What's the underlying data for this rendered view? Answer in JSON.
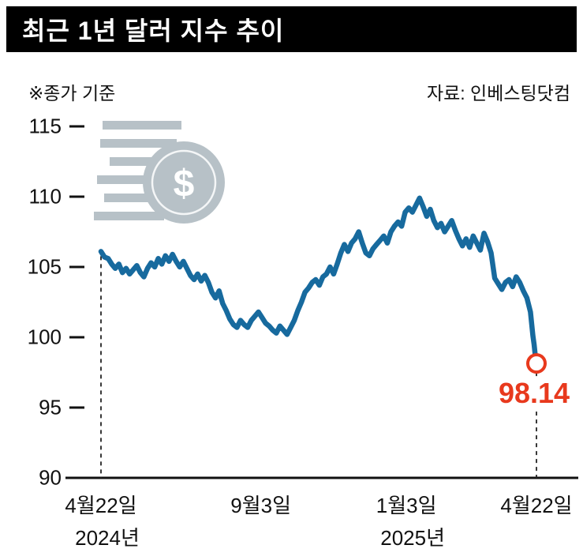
{
  "header": {
    "title": "최근 1년 달러 지수 추이"
  },
  "meta": {
    "note": "※종가 기준",
    "source": "자료: 인베스팅닷컴"
  },
  "colors": {
    "line": "#176a9e",
    "accent_red": "#e8391d",
    "icon_gray": "#b7c1c7",
    "axis": "#111111",
    "banner_bg": "#000000",
    "banner_text": "#ffffff"
  },
  "chart_data": {
    "type": "line",
    "title": "최근 1년 달러 지수 추이",
    "note": "※종가 기준",
    "source": "자료: 인베스팅닷컴",
    "ylim": [
      90,
      115
    ],
    "yticks": [
      115,
      110,
      105,
      100,
      95,
      90
    ],
    "grid": false,
    "legend": "none",
    "line_width": 6.5,
    "x_axis": {
      "unit": "days_since_start",
      "max_day": 365,
      "labels": [
        {
          "day": 0,
          "label": "4월22일",
          "sub": "2024년"
        },
        {
          "day": 134,
          "label": "9월3일"
        },
        {
          "day": 256,
          "label": "1월3일",
          "sub": "2025년"
        },
        {
          "day": 365,
          "label": "4월22일"
        }
      ]
    },
    "series": [
      {
        "name": "달러 지수",
        "color": "#176a9e",
        "points": [
          [
            0,
            106.1
          ],
          [
            3,
            105.7
          ],
          [
            6,
            105.6
          ],
          [
            9,
            105.2
          ],
          [
            12,
            104.9
          ],
          [
            15,
            105.2
          ],
          [
            18,
            104.6
          ],
          [
            21,
            104.9
          ],
          [
            24,
            104.5
          ],
          [
            27,
            104.8
          ],
          [
            30,
            105.1
          ],
          [
            33,
            104.6
          ],
          [
            36,
            104.3
          ],
          [
            39,
            104.9
          ],
          [
            42,
            105.3
          ],
          [
            45,
            105.0
          ],
          [
            48,
            105.6
          ],
          [
            51,
            105.2
          ],
          [
            54,
            105.8
          ],
          [
            57,
            105.4
          ],
          [
            60,
            105.9
          ],
          [
            63,
            105.4
          ],
          [
            66,
            105.0
          ],
          [
            69,
            105.4
          ],
          [
            72,
            104.9
          ],
          [
            75,
            104.4
          ],
          [
            78,
            104.1
          ],
          [
            81,
            104.5
          ],
          [
            84,
            104.0
          ],
          [
            87,
            104.4
          ],
          [
            90,
            103.9
          ],
          [
            93,
            103.2
          ],
          [
            96,
            102.8
          ],
          [
            99,
            103.3
          ],
          [
            102,
            102.4
          ],
          [
            105,
            101.9
          ],
          [
            108,
            101.3
          ],
          [
            111,
            100.9
          ],
          [
            114,
            100.7
          ],
          [
            117,
            101.2
          ],
          [
            120,
            100.9
          ],
          [
            123,
            100.7
          ],
          [
            126,
            101.2
          ],
          [
            129,
            101.5
          ],
          [
            132,
            101.8
          ],
          [
            135,
            101.4
          ],
          [
            138,
            101.0
          ],
          [
            141,
            100.8
          ],
          [
            144,
            100.5
          ],
          [
            147,
            100.3
          ],
          [
            150,
            100.8
          ],
          [
            153,
            100.5
          ],
          [
            156,
            100.2
          ],
          [
            159,
            100.7
          ],
          [
            162,
            101.2
          ],
          [
            165,
            101.9
          ],
          [
            168,
            102.5
          ],
          [
            171,
            103.2
          ],
          [
            174,
            103.5
          ],
          [
            177,
            103.9
          ],
          [
            180,
            104.1
          ],
          [
            183,
            103.7
          ],
          [
            186,
            104.3
          ],
          [
            189,
            104.5
          ],
          [
            192,
            105.0
          ],
          [
            195,
            104.5
          ],
          [
            198,
            105.2
          ],
          [
            201,
            106.0
          ],
          [
            204,
            106.6
          ],
          [
            207,
            106.1
          ],
          [
            210,
            106.7
          ],
          [
            213,
            107.0
          ],
          [
            216,
            107.5
          ],
          [
            219,
            106.7
          ],
          [
            222,
            106.0
          ],
          [
            225,
            105.8
          ],
          [
            228,
            106.3
          ],
          [
            231,
            106.6
          ],
          [
            234,
            106.9
          ],
          [
            237,
            107.2
          ],
          [
            240,
            106.7
          ],
          [
            243,
            107.5
          ],
          [
            246,
            107.9
          ],
          [
            249,
            108.2
          ],
          [
            252,
            107.9
          ],
          [
            255,
            108.9
          ],
          [
            258,
            109.2
          ],
          [
            261,
            108.9
          ],
          [
            264,
            109.4
          ],
          [
            267,
            109.9
          ],
          [
            270,
            109.3
          ],
          [
            273,
            108.6
          ],
          [
            276,
            109.1
          ],
          [
            279,
            108.3
          ],
          [
            282,
            107.8
          ],
          [
            285,
            108.1
          ],
          [
            288,
            107.5
          ],
          [
            291,
            107.9
          ],
          [
            294,
            108.3
          ],
          [
            297,
            107.6
          ],
          [
            300,
            107.0
          ],
          [
            303,
            106.5
          ],
          [
            306,
            107.0
          ],
          [
            309,
            106.4
          ],
          [
            312,
            107.2
          ],
          [
            315,
            106.7
          ],
          [
            318,
            106.2
          ],
          [
            321,
            107.4
          ],
          [
            324,
            106.8
          ],
          [
            327,
            106.0
          ],
          [
            330,
            104.2
          ],
          [
            333,
            103.8
          ],
          [
            336,
            103.4
          ],
          [
            339,
            103.9
          ],
          [
            342,
            104.1
          ],
          [
            345,
            103.6
          ],
          [
            348,
            104.3
          ],
          [
            351,
            103.9
          ],
          [
            354,
            103.3
          ],
          [
            357,
            102.8
          ],
          [
            360,
            101.8
          ],
          [
            362,
            100.1
          ],
          [
            363,
            99.5
          ],
          [
            364,
            98.7
          ],
          [
            365,
            98.14
          ]
        ]
      }
    ],
    "end_marker": {
      "day": 365,
      "value": 98.14,
      "label": "98.14",
      "color": "#e8391d"
    }
  }
}
